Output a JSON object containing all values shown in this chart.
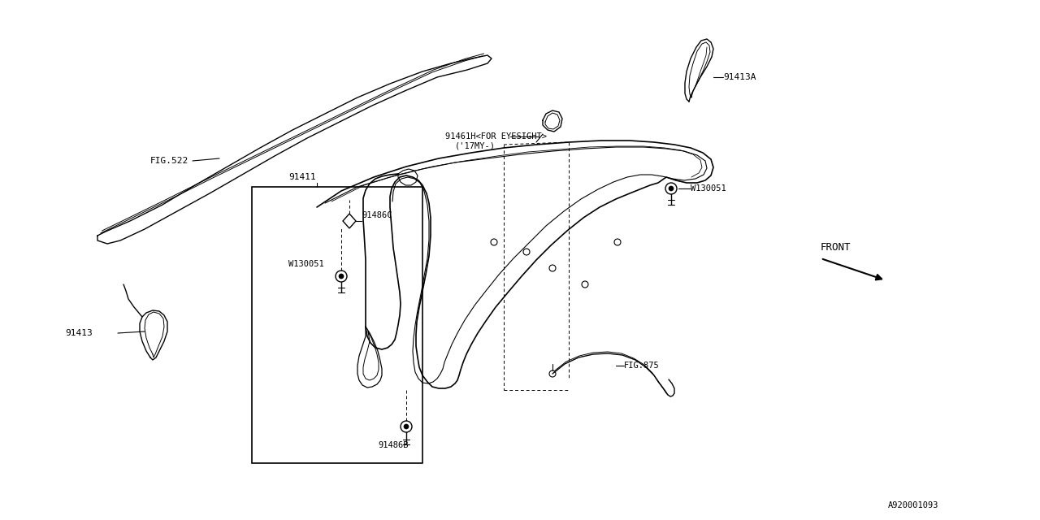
{
  "bg_color": "#ffffff",
  "line_color": "#000000",
  "diagram_id": "A920001093",
  "figsize": [
    12.8,
    6.4
  ],
  "dpi": 100,
  "labels": {
    "fig522": "FIG.522",
    "91411": "91411",
    "91413": "91413",
    "91413A": "91413A",
    "91461H_line1": "91461H<FOR EYESIGHT>",
    "91461H_line2": "('17MY-)",
    "W130051_left": "W130051",
    "W130051_right": "W130051",
    "91486C": "91486C",
    "91486B": "91486B",
    "fig875": "FIG.875",
    "front": "FRONT",
    "diagram_id_text": "A920001093"
  }
}
